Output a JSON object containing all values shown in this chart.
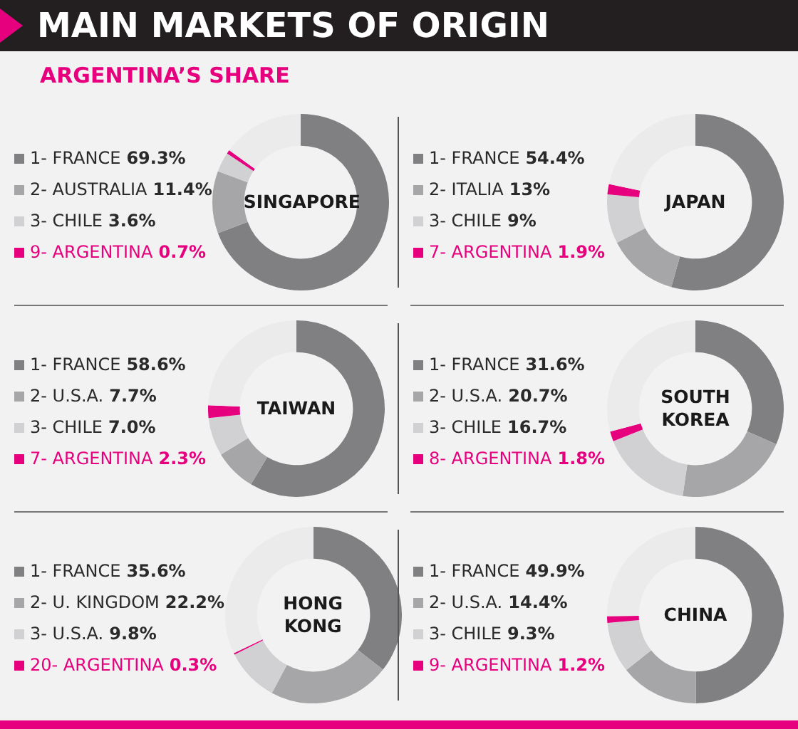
{
  "chart_data": [
    {
      "type": "other",
      "title": "MAIN MARKETS OF ORIGIN",
      "subtitle": "ARGENTINA’S SHARE"
    },
    {
      "type": "donut",
      "title": "SINGAPORE",
      "categories": [
        "1- FRANCE",
        "2- AUSTRALIA",
        "3- CHILE",
        "9- ARGENTINA",
        null
      ],
      "values": [
        69.3,
        11.4,
        3.6,
        0.7,
        15.0
      ],
      "value_labels": [
        "69.3%",
        "11.4%",
        "3.6%",
        "0.7%",
        null
      ],
      "colors": [
        "#808083",
        "#a6a6a8",
        "#d1d1d3",
        "#e6007e",
        "#ebebeb"
      ],
      "legend": "left"
    },
    {
      "type": "donut",
      "title": "JAPAN",
      "categories": [
        "1- FRANCE",
        "2- ITALIA",
        "3- CHILE",
        "7- ARGENTINA",
        null
      ],
      "values": [
        54.4,
        13,
        9,
        1.9,
        21.7
      ],
      "value_labels": [
        "54.4%",
        "13%",
        "9%",
        "1.9%",
        null
      ],
      "colors": [
        "#808083",
        "#a6a6a8",
        "#d1d1d3",
        "#e6007e",
        "#ebebeb"
      ],
      "legend": "left"
    },
    {
      "type": "donut",
      "title": "TAIWAN",
      "categories": [
        "1- FRANCE",
        "2- U.S.A.",
        "3- CHILE",
        "7- ARGENTINA",
        null
      ],
      "values": [
        58.6,
        7.7,
        7.0,
        2.3,
        24.4
      ],
      "value_labels": [
        "58.6%",
        "7.7%",
        "7.0%",
        "2.3%",
        null
      ],
      "colors": [
        "#808083",
        "#a6a6a8",
        "#d1d1d3",
        "#e6007e",
        "#ebebeb"
      ],
      "legend": "left"
    },
    {
      "type": "donut",
      "title": "SOUTH KOREA",
      "categories": [
        "1- FRANCE",
        "2- U.S.A.",
        "3- CHILE",
        "8- ARGENTINA",
        null
      ],
      "values": [
        31.6,
        20.7,
        16.7,
        1.8,
        29.2
      ],
      "value_labels": [
        "31.6%",
        "20.7%",
        "16.7%",
        "1.8%",
        null
      ],
      "colors": [
        "#808083",
        "#a6a6a8",
        "#d1d1d3",
        "#e6007e",
        "#ebebeb"
      ],
      "legend": "left"
    },
    {
      "type": "donut",
      "title": "HONG KONG",
      "categories": [
        "1- FRANCE",
        "2- U. KINGDOM",
        "3- U.S.A.",
        "20- ARGENTINA",
        null
      ],
      "values": [
        35.6,
        22.2,
        9.8,
        0.3,
        32.1
      ],
      "value_labels": [
        "35.6%",
        "22.2%",
        "9.8%",
        "0.3%",
        null
      ],
      "colors": [
        "#808083",
        "#a6a6a8",
        "#d1d1d3",
        "#e6007e",
        "#ebebeb"
      ],
      "legend": "left"
    },
    {
      "type": "donut",
      "title": "CHINA",
      "categories": [
        "1- FRANCE",
        "2- U.S.A.",
        "3- CHILE",
        "9- ARGENTINA",
        null
      ],
      "values": [
        49.9,
        14.4,
        9.3,
        1.2,
        25.2
      ],
      "value_labels": [
        "49.9%",
        "14.4%",
        "9.3%",
        "1.2%",
        null
      ],
      "colors": [
        "#808083",
        "#a6a6a8",
        "#d1d1d3",
        "#e6007e",
        "#ebebeb"
      ],
      "legend": "left"
    }
  ]
}
